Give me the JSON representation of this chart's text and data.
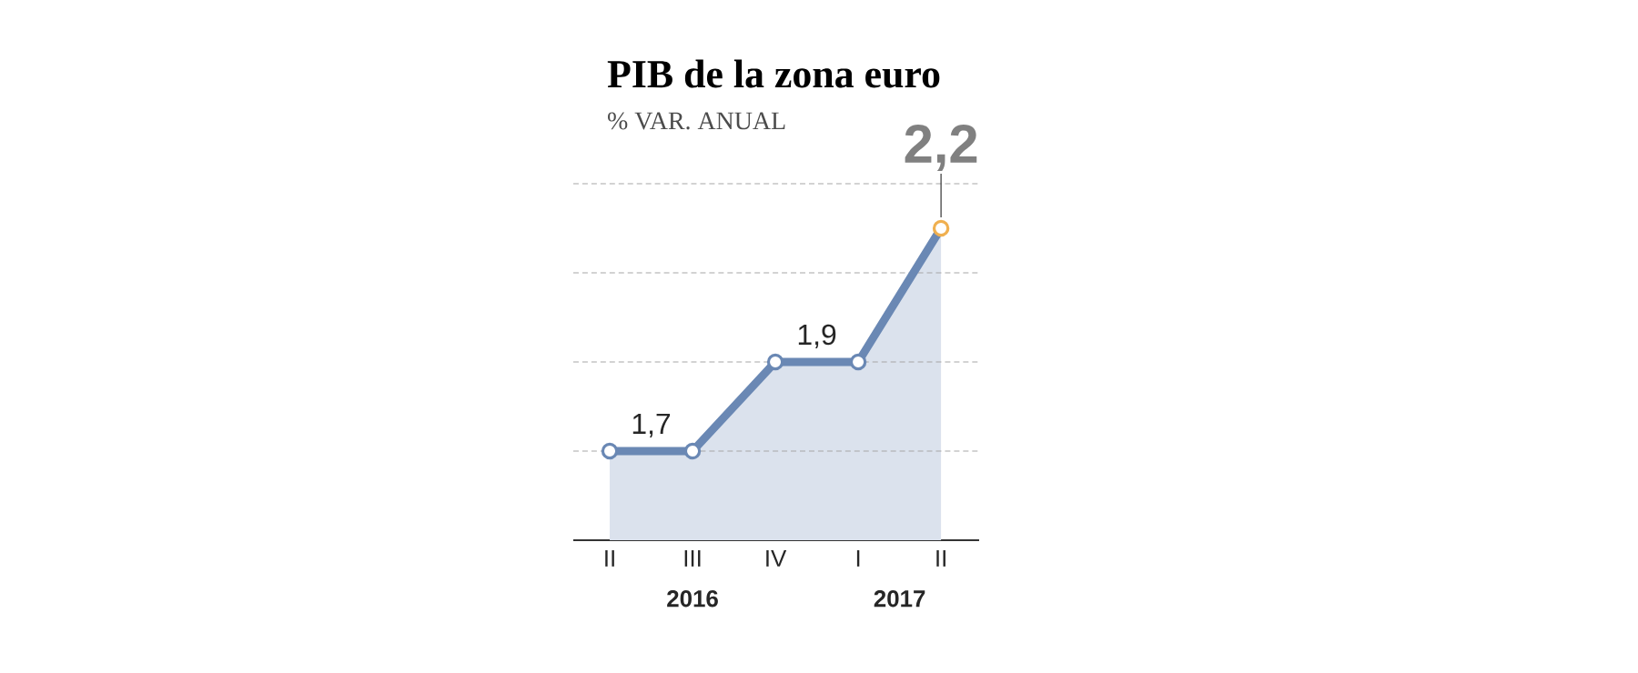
{
  "chart_data": {
    "type": "area",
    "title": "PIB de la zona euro",
    "subtitle": "% VAR. ANUAL",
    "categories": [
      "II",
      "III",
      "IV",
      "I",
      "II"
    ],
    "series": [
      {
        "color": "#6a88b4",
        "colors": [
          "#6a88b4",
          "#6a88b4",
          "#6a88b4",
          "#6a88b4",
          "#f0b050"
        ],
        "values": [
          1.7,
          1.7,
          1.9,
          1.9,
          2.2
        ],
        "value_labels": [
          "1,7",
          null,
          "1,9",
          null,
          "2,2"
        ]
      }
    ],
    "ylim": [
      1.5,
      2.3
    ],
    "yticks": [
      {
        "value": 1.7,
        "label": null
      },
      {
        "value": 1.9,
        "label": null
      },
      {
        "value": 2.1,
        "label": null
      },
      {
        "value": 2.3,
        "label": null
      }
    ],
    "grid": "y",
    "marker": "circle",
    "tick_labels": "x",
    "annotations": [
      "2016",
      "2017"
    ]
  }
}
